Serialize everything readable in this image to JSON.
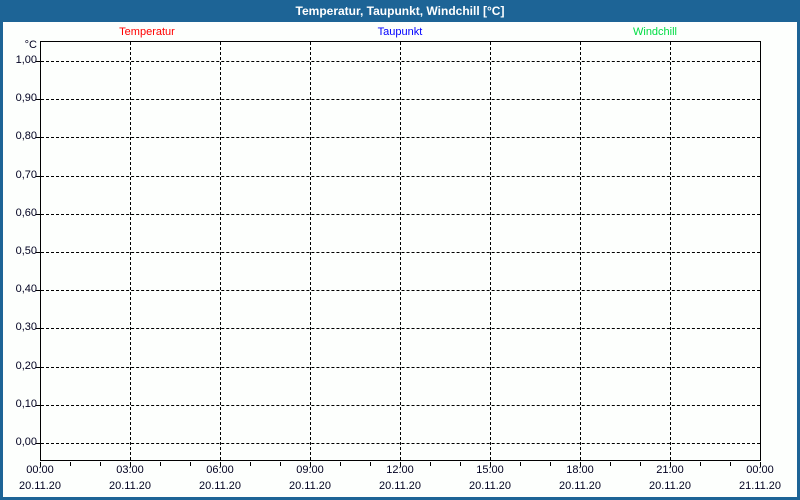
{
  "window": {
    "title": "Temperatur, Taupunkt, Windchill [°C]"
  },
  "colors": {
    "titlebar_bg": "#1d6496",
    "title_text": "#ffffff",
    "window_border": "#1d6496",
    "background": "#fdfffd",
    "axis": "#000000",
    "grid": "#000000",
    "label_text": "#000020",
    "temperatur": "#ff0000",
    "taupunkt": "#0000ff",
    "windchill": "#00dd44"
  },
  "legend": {
    "items": [
      {
        "label": "Temperatur",
        "color": "#ff0000"
      },
      {
        "label": "Taupunkt",
        "color": "#0000ff"
      },
      {
        "label": "Windchill",
        "color": "#00dd44"
      }
    ]
  },
  "chart_data": {
    "type": "line",
    "title": "Temperatur, Taupunkt, Windchill [°C]",
    "ylabel_unit": "°C",
    "ylim": [
      0,
      1
    ],
    "ytick_labels": [
      "1,00",
      "0,90",
      "0,80",
      "0,70",
      "0,60",
      "0,50",
      "0,40",
      "0,30",
      "0,20",
      "0,10",
      "0,00"
    ],
    "xtick_times": [
      "00:00",
      "03:00",
      "06:00",
      "09:00",
      "12:00",
      "15:00",
      "18:00",
      "21:00",
      "00:00"
    ],
    "xtick_dates": [
      "20.11.20",
      "20.11.20",
      "20.11.20",
      "20.11.20",
      "20.11.20",
      "20.11.20",
      "20.11.20",
      "20.11.20",
      "21.11.20"
    ],
    "minor_xticks_per_major_interval": 2,
    "grid": true,
    "legend_position": "top",
    "series": [
      {
        "name": "Temperatur",
        "color": "#ff0000",
        "values": []
      },
      {
        "name": "Taupunkt",
        "color": "#0000ff",
        "values": []
      },
      {
        "name": "Windchill",
        "color": "#00dd44",
        "values": []
      }
    ]
  }
}
